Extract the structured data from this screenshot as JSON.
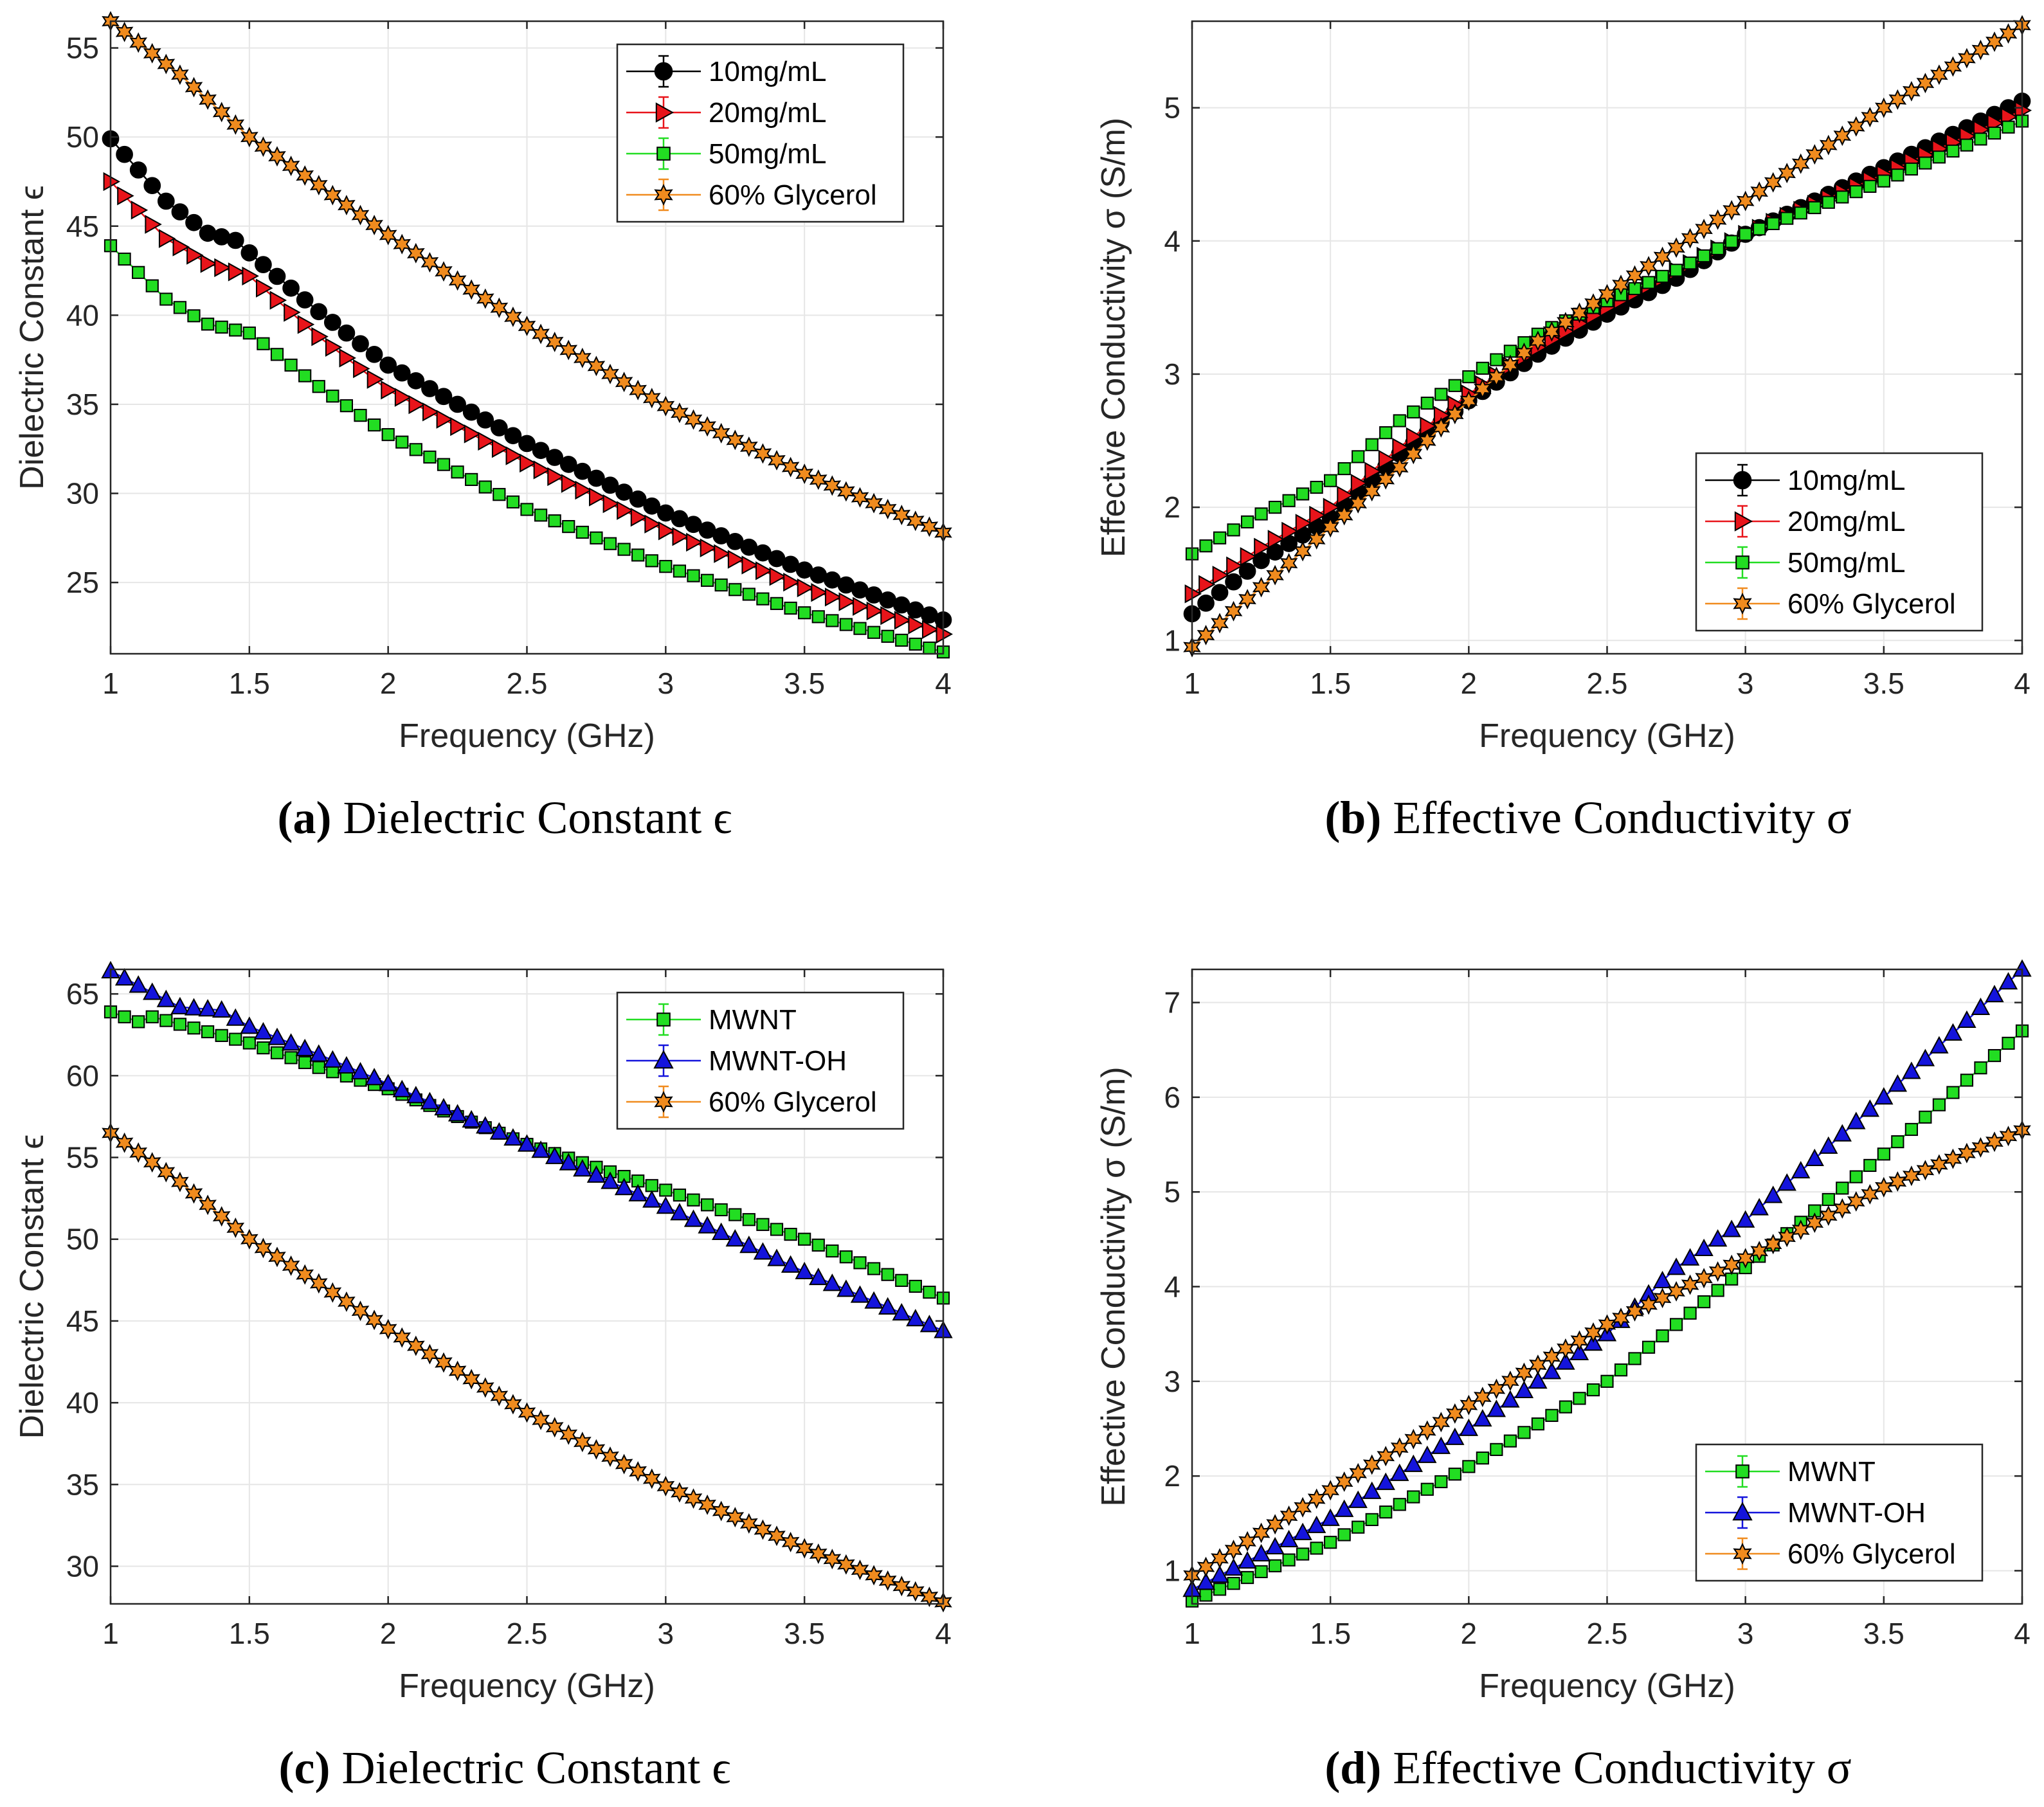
{
  "chart_data": [
    {
      "type": "line",
      "panel": "a",
      "caption_tag": "(a)",
      "caption_text": "Dielectric Constant ϵ",
      "xlabel": "Frequency (GHz)",
      "ylabel": "Dielectric Constant ϵ",
      "xlim": [
        1,
        4
      ],
      "ylim": [
        21,
        56.5
      ],
      "xticks": [
        1,
        1.5,
        2,
        2.5,
        3,
        3.5,
        4
      ],
      "xtick_labels": [
        "1",
        "1.5",
        "2",
        "2.5",
        "3",
        "3.5",
        "4"
      ],
      "yticks": [
        25,
        30,
        35,
        40,
        45,
        50,
        55
      ],
      "ytick_labels": [
        "25",
        "30",
        "35",
        "40",
        "45",
        "50",
        "55"
      ],
      "grid": true,
      "legend_position": "top-right",
      "x_range": [
        1,
        4
      ],
      "n_points": 61,
      "series": [
        {
          "name": "10mg/mL",
          "color": "#000000",
          "marker": "circle",
          "anchors": [
            [
              1,
              49.9
            ],
            [
              1.2,
              46.4
            ],
            [
              1.35,
              44.6
            ],
            [
              1.45,
              44.2
            ],
            [
              1.5,
              43.5
            ],
            [
              1.75,
              40.2
            ],
            [
              2,
              37.2
            ],
            [
              2.5,
              32.8
            ],
            [
              3,
              28.9
            ],
            [
              3.5,
              25.7
            ],
            [
              4,
              22.9
            ]
          ]
        },
        {
          "name": "20mg/mL",
          "color": "#e8141a",
          "marker": "triangle-right",
          "anchors": [
            [
              1,
              47.5
            ],
            [
              1.2,
              44.3
            ],
            [
              1.35,
              42.9
            ],
            [
              1.5,
              42.2
            ],
            [
              1.75,
              38.8
            ],
            [
              2,
              35.8
            ],
            [
              2.5,
              31.7
            ],
            [
              3,
              27.9
            ],
            [
              3.5,
              24.7
            ],
            [
              4,
              22.1
            ]
          ]
        },
        {
          "name": "50mg/mL",
          "color": "#22dd22",
          "marker": "square",
          "anchors": [
            [
              1,
              43.9
            ],
            [
              1.2,
              40.9
            ],
            [
              1.35,
              39.5
            ],
            [
              1.5,
              39.0
            ],
            [
              1.75,
              36.0
            ],
            [
              2,
              33.3
            ],
            [
              2.5,
              29.1
            ],
            [
              3,
              25.9
            ],
            [
              3.5,
              23.3
            ],
            [
              4,
              21.1
            ]
          ]
        },
        {
          "name": "60% Glycerol",
          "color": "#f08b1e",
          "marker": "star",
          "anchors": [
            [
              1,
              56.5
            ],
            [
              1.25,
              53.5
            ],
            [
              1.5,
              50.0
            ],
            [
              1.75,
              47.3
            ],
            [
              2,
              44.5
            ],
            [
              2.5,
              39.4
            ],
            [
              3,
              34.9
            ],
            [
              3.5,
              31.1
            ],
            [
              4,
              27.8
            ]
          ]
        }
      ]
    },
    {
      "type": "line",
      "panel": "b",
      "caption_tag": "(b)",
      "caption_text": "Effective Conductivity σ",
      "xlabel": "Frequency (GHz)",
      "ylabel": "Effective Conductivity σ (S/m)",
      "xlim": [
        1,
        4
      ],
      "ylim": [
        0.9,
        5.65
      ],
      "xticks": [
        1,
        1.5,
        2,
        2.5,
        3,
        3.5,
        4
      ],
      "xtick_labels": [
        "1",
        "1.5",
        "2",
        "2.5",
        "3",
        "3.5",
        "4"
      ],
      "yticks": [
        1,
        2,
        3,
        4,
        5
      ],
      "ytick_labels": [
        "1",
        "2",
        "3",
        "4",
        "5"
      ],
      "grid": true,
      "legend_position": "bottom-right",
      "x_range": [
        1,
        4
      ],
      "n_points": 61,
      "series": [
        {
          "name": "10mg/mL",
          "color": "#000000",
          "marker": "circle",
          "anchors": [
            [
              1,
              1.2
            ],
            [
              1.25,
              1.6
            ],
            [
              1.5,
              1.92
            ],
            [
              1.75,
              2.4
            ],
            [
              2,
              2.8
            ],
            [
              2.25,
              3.15
            ],
            [
              2.5,
              3.45
            ],
            [
              2.75,
              3.72
            ],
            [
              3,
              4.05
            ],
            [
              3.5,
              4.55
            ],
            [
              4,
              5.05
            ]
          ]
        },
        {
          "name": "20mg/mL",
          "color": "#e8141a",
          "marker": "triangle-right",
          "anchors": [
            [
              1,
              1.35
            ],
            [
              1.25,
              1.7
            ],
            [
              1.5,
              2.0
            ],
            [
              1.75,
              2.45
            ],
            [
              2,
              2.85
            ],
            [
              2.25,
              3.2
            ],
            [
              2.5,
              3.5
            ],
            [
              3,
              4.05
            ],
            [
              3.5,
              4.5
            ],
            [
              4,
              4.98
            ]
          ]
        },
        {
          "name": "50mg/mL",
          "color": "#22dd22",
          "marker": "square",
          "anchors": [
            [
              1,
              1.65
            ],
            [
              1.25,
              1.95
            ],
            [
              1.5,
              2.2
            ],
            [
              1.75,
              2.65
            ],
            [
              2,
              2.98
            ],
            [
              2.25,
              3.3
            ],
            [
              2.5,
              3.55
            ],
            [
              2.75,
              3.78
            ],
            [
              3,
              4.05
            ],
            [
              3.5,
              4.45
            ],
            [
              4,
              4.9
            ]
          ]
        },
        {
          "name": "60% Glycerol",
          "color": "#f08b1e",
          "marker": "star",
          "anchors": [
            [
              1,
              0.95
            ],
            [
              1.25,
              1.4
            ],
            [
              1.5,
              1.85
            ],
            [
              1.75,
              2.3
            ],
            [
              2,
              2.8
            ],
            [
              2.25,
              3.25
            ],
            [
              2.5,
              3.6
            ],
            [
              2.75,
              3.95
            ],
            [
              3,
              4.3
            ],
            [
              3.5,
              5.0
            ],
            [
              4,
              5.62
            ]
          ]
        }
      ]
    },
    {
      "type": "line",
      "panel": "c",
      "caption_tag": "(c)",
      "caption_text": "Dielectric Constant ϵ",
      "xlabel": "Frequency (GHz)",
      "ylabel": "Dielectric Constant ϵ",
      "xlim": [
        1,
        4
      ],
      "ylim": [
        27.7,
        66.5
      ],
      "xticks": [
        1,
        1.5,
        2,
        2.5,
        3,
        3.5,
        4
      ],
      "xtick_labels": [
        "1",
        "1.5",
        "2",
        "2.5",
        "3",
        "3.5",
        "4"
      ],
      "yticks": [
        30,
        35,
        40,
        45,
        50,
        55,
        60,
        65
      ],
      "ytick_labels": [
        "30",
        "35",
        "40",
        "45",
        "50",
        "55",
        "60",
        "65"
      ],
      "grid": true,
      "legend_position": "top-right",
      "x_range": [
        1,
        4
      ],
      "n_points": 61,
      "series": [
        {
          "name": "MWNT",
          "color": "#22dd22",
          "marker": "square",
          "anchors": [
            [
              1,
              63.9
            ],
            [
              1.1,
              63.3
            ],
            [
              1.15,
              63.6
            ],
            [
              1.5,
              62.0
            ],
            [
              1.75,
              60.5
            ],
            [
              2,
              59.2
            ],
            [
              2.5,
              55.8
            ],
            [
              3,
              53.0
            ],
            [
              3.5,
              50.0
            ],
            [
              4,
              46.4
            ]
          ]
        },
        {
          "name": "MWNT-OH",
          "color": "#1414dc",
          "marker": "triangle-up",
          "anchors": [
            [
              1,
              66.4
            ],
            [
              1.25,
              64.2
            ],
            [
              1.4,
              64.0
            ],
            [
              1.5,
              63.0
            ],
            [
              1.75,
              61.3
            ],
            [
              2,
              59.5
            ],
            [
              2.5,
              55.8
            ],
            [
              3,
              52.0
            ],
            [
              3.5,
              48.0
            ],
            [
              4,
              44.4
            ]
          ]
        },
        {
          "name": "60% Glycerol",
          "color": "#f08b1e",
          "marker": "star",
          "anchors": [
            [
              1,
              56.5
            ],
            [
              1.25,
              53.5
            ],
            [
              1.5,
              50.0
            ],
            [
              1.75,
              47.3
            ],
            [
              2,
              44.5
            ],
            [
              2.5,
              39.4
            ],
            [
              3,
              34.9
            ],
            [
              3.5,
              31.1
            ],
            [
              4,
              27.8
            ]
          ]
        }
      ]
    },
    {
      "type": "line",
      "panel": "d",
      "caption_tag": "(d)",
      "caption_text": "Effective Conductivity σ",
      "xlabel": "Frequency (GHz)",
      "ylabel": "Effective Conductivity σ (S/m)",
      "xlim": [
        1,
        4
      ],
      "ylim": [
        0.65,
        7.35
      ],
      "xticks": [
        1,
        1.5,
        2,
        2.5,
        3,
        3.5,
        4
      ],
      "xtick_labels": [
        "1",
        "1.5",
        "2",
        "2.5",
        "3",
        "3.5",
        "4"
      ],
      "yticks": [
        1,
        2,
        3,
        4,
        5,
        6,
        7
      ],
      "ytick_labels": [
        "1",
        "2",
        "3",
        "4",
        "5",
        "6",
        "7"
      ],
      "grid": true,
      "legend_position": "bottom-right",
      "x_range": [
        1,
        4
      ],
      "n_points": 61,
      "series": [
        {
          "name": "MWNT",
          "color": "#22dd22",
          "marker": "square",
          "anchors": [
            [
              1,
              0.68
            ],
            [
              1.5,
              1.3
            ],
            [
              2,
              2.1
            ],
            [
              2.5,
              3.0
            ],
            [
              3,
              4.2
            ],
            [
              3.5,
              5.4
            ],
            [
              4,
              6.7
            ]
          ]
        },
        {
          "name": "MWNT-OH",
          "color": "#1414dc",
          "marker": "triangle-up",
          "anchors": [
            [
              1,
              0.8
            ],
            [
              1.5,
              1.55
            ],
            [
              2,
              2.5
            ],
            [
              2.5,
              3.5
            ],
            [
              2.75,
              4.2
            ],
            [
              3,
              4.7
            ],
            [
              3.5,
              6.0
            ],
            [
              4,
              7.35
            ]
          ]
        },
        {
          "name": "60% Glycerol",
          "color": "#f08b1e",
          "marker": "star",
          "anchors": [
            [
              1,
              0.95
            ],
            [
              1.5,
              1.85
            ],
            [
              2,
              2.75
            ],
            [
              2.5,
              3.6
            ],
            [
              3,
              4.3
            ],
            [
              3.5,
              5.05
            ],
            [
              4,
              5.65
            ]
          ]
        }
      ]
    }
  ]
}
